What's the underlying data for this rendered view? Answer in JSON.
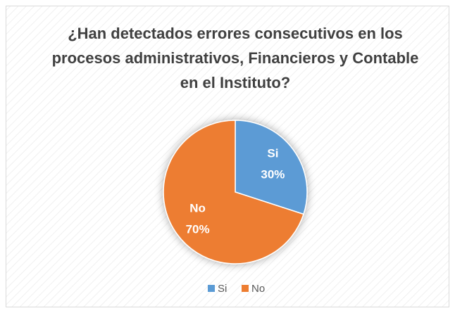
{
  "chart_data": {
    "type": "pie",
    "title": "¿Han detectados errores consecutivos en los procesos administrativos, Financieros y Contable en el Instituto?",
    "categories": [
      "Si",
      "No"
    ],
    "values": [
      30,
      70
    ],
    "value_labels": [
      "30%",
      "70%"
    ],
    "colors": [
      "#5b9bd5",
      "#ed7d31"
    ],
    "legend": "bottom"
  }
}
